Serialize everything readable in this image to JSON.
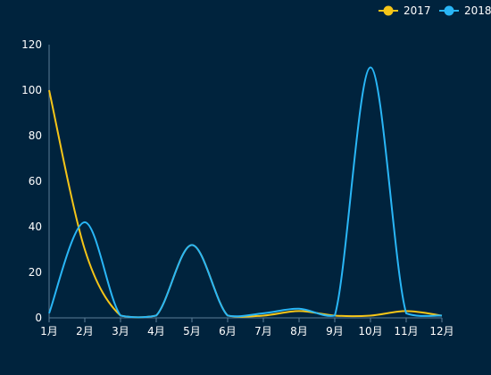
{
  "chart_data": {
    "type": "line",
    "smooth": true,
    "title": "",
    "xlabel": "",
    "ylabel": "",
    "categories": [
      "1月",
      "2月",
      "3月",
      "4月",
      "5月",
      "6月",
      "7月",
      "8月",
      "9月",
      "10月",
      "11月",
      "12月"
    ],
    "y_ticks": [
      "0",
      "20",
      "40",
      "60",
      "80",
      "100",
      "120"
    ],
    "ylim": [
      0,
      120
    ],
    "grid": false,
    "legend_position": "top-right",
    "series": [
      {
        "name": "2017",
        "color": "#f5c518",
        "values": [
          100,
          30,
          1,
          1,
          32,
          1,
          1,
          3,
          1,
          1,
          3,
          1
        ]
      },
      {
        "name": "2018",
        "color": "#29b6f6",
        "values": [
          2,
          42,
          1,
          1,
          32,
          1,
          2,
          4,
          1,
          110,
          2,
          1
        ]
      }
    ]
  }
}
